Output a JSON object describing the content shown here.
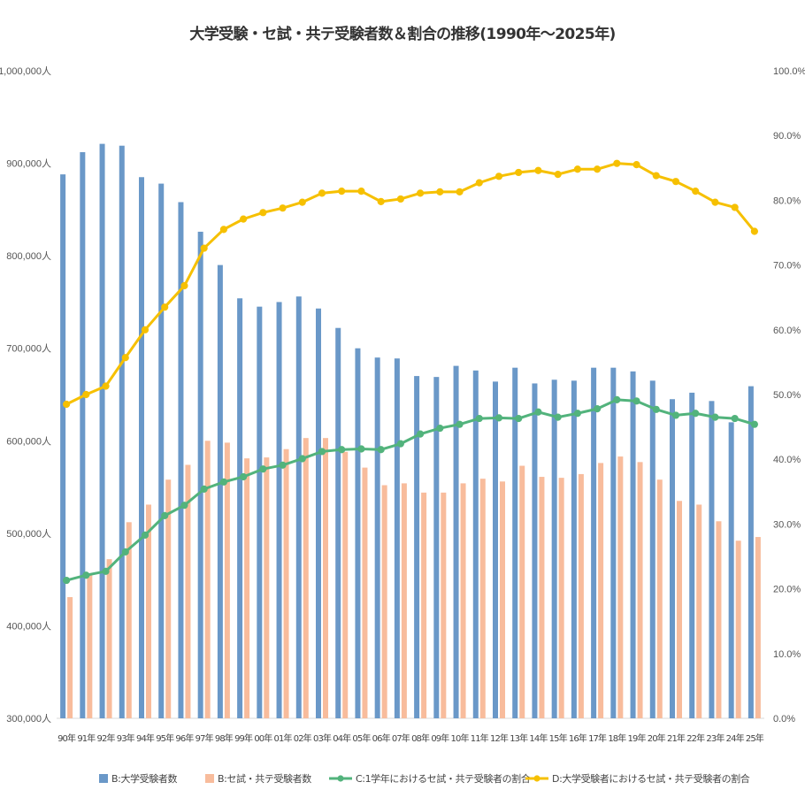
{
  "chart_data": {
    "type": "bar+line",
    "title": "大学受験・セ試・共テ受験者数＆割合の推移(1990年～2025年)",
    "categories": [
      "90年",
      "91年",
      "92年",
      "93年",
      "94年",
      "95年",
      "96年",
      "97年",
      "98年",
      "99年",
      "00年",
      "01年",
      "02年",
      "03年",
      "04年",
      "05年",
      "06年",
      "07年",
      "08年",
      "09年",
      "10年",
      "11年",
      "12年",
      "13年",
      "14年",
      "15年",
      "16年",
      "17年",
      "18年",
      "19年",
      "20年",
      "21年",
      "22年",
      "23年",
      "24年",
      "25年"
    ],
    "left_axis": {
      "min": 300000,
      "max": 1000000,
      "step": 100000,
      "tick_labels": [
        "300,000人",
        "400,000人",
        "500,000人",
        "600,000人",
        "700,000人",
        "800,000人",
        "900,000人",
        "1,000,000人"
      ]
    },
    "right_axis": {
      "min": 0,
      "max": 100,
      "step": 10,
      "tick_labels": [
        "0.0%",
        "10.0%",
        "20.0%",
        "30.0%",
        "40.0%",
        "50.0%",
        "60.0%",
        "70.0%",
        "80.0%",
        "90.0%",
        "100.0%"
      ]
    },
    "series": [
      {
        "name": "B:大学受験者数",
        "kind": "bar",
        "axis": "left",
        "color": "#6a98c8",
        "values": [
          888000,
          912000,
          921000,
          919000,
          885000,
          878000,
          858000,
          826000,
          790000,
          754000,
          745000,
          750000,
          756000,
          743000,
          722000,
          700000,
          690000,
          689000,
          670000,
          669000,
          681000,
          676000,
          664000,
          679000,
          662000,
          666000,
          665000,
          679000,
          679000,
          675000,
          665000,
          645000,
          652000,
          643000,
          620000,
          659000
        ]
      },
      {
        "name": "B:セ試・共テ受験者数",
        "kind": "bar",
        "axis": "left",
        "color": "#f8bc9c",
        "values": [
          431000,
          456000,
          472000,
          512000,
          531000,
          558000,
          574000,
          600000,
          598000,
          581000,
          582000,
          591000,
          603000,
          603000,
          588000,
          571000,
          552000,
          554000,
          544000,
          544000,
          554000,
          559000,
          556000,
          573000,
          561000,
          560000,
          564000,
          576000,
          583000,
          577000,
          558000,
          535000,
          531000,
          513000,
          492000,
          496000
        ]
      },
      {
        "name": "C:1学年におけるセ試・共テ受験者の割合",
        "kind": "line",
        "axis": "right",
        "color": "#52b37c",
        "values": [
          21.3,
          22.1,
          22.7,
          25.7,
          28.3,
          31.3,
          32.9,
          35.4,
          36.5,
          37.3,
          38.5,
          39.1,
          40.1,
          41.2,
          41.5,
          41.6,
          41.5,
          42.4,
          43.9,
          44.8,
          45.4,
          46.3,
          46.4,
          46.3,
          47.3,
          46.5,
          47.1,
          47.8,
          49.2,
          49.0,
          47.7,
          46.8,
          47.1,
          46.5,
          46.3,
          45.4
        ]
      },
      {
        "name": "D:大学受験者におけるセ試・共テ受験者の割合",
        "kind": "line",
        "axis": "right",
        "color": "#f6c000",
        "values": [
          48.5,
          50.0,
          51.3,
          55.7,
          60.0,
          63.5,
          66.8,
          72.6,
          75.5,
          77.1,
          78.1,
          78.8,
          79.7,
          81.1,
          81.4,
          81.4,
          79.8,
          80.2,
          81.1,
          81.3,
          81.3,
          82.7,
          83.7,
          84.3,
          84.6,
          84.0,
          84.8,
          84.8,
          85.7,
          85.5,
          83.8,
          82.9,
          81.4,
          79.7,
          78.9,
          75.2
        ]
      }
    ],
    "legend_position": "bottom",
    "grid": false
  }
}
